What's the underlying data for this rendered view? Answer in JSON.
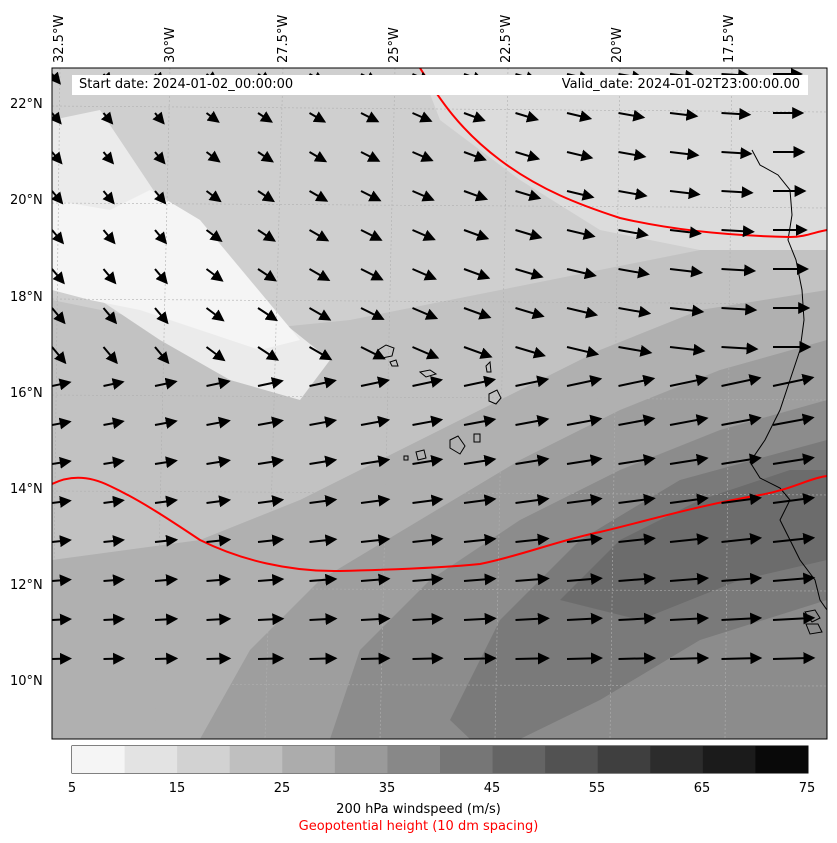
{
  "map": {
    "start_date": "Start date: 2024-01-02_00:00:00",
    "valid_date": "Valid_date: 2024-01-02T23:00:00.00",
    "lon_labels": [
      "32.5°W",
      "30°W",
      "27.5°W",
      "25°W",
      "22.5°W",
      "20°W",
      "17.5°W"
    ],
    "lat_labels": [
      "22°N",
      "20°N",
      "18°N",
      "16°N",
      "14°N",
      "12°N",
      "10°N"
    ],
    "colorbar": {
      "ticks": [
        "5",
        "15",
        "25",
        "35",
        "45",
        "55",
        "65",
        "75"
      ],
      "label": "200 hPa windspeed (m/s)",
      "label2": "Geopotential height (10 dm spacing)",
      "colors": [
        "#f5f5f5",
        "#e3e3e3",
        "#d2d2d2",
        "#bfbfbf",
        "#acacac",
        "#9a9a9a",
        "#888888",
        "#767676",
        "#646464",
        "#525252",
        "#3f3f3f",
        "#2c2c2c",
        "#1b1b1b",
        "#090909"
      ]
    },
    "contour_color": "#ff0000"
  }
}
